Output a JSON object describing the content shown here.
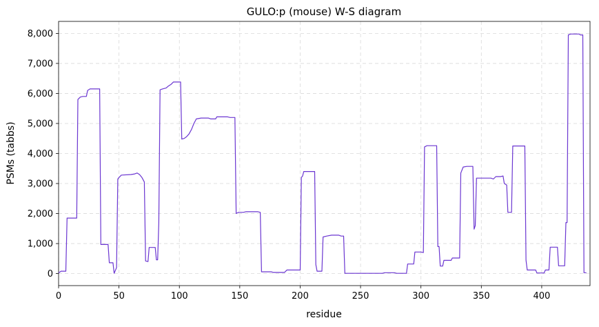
{
  "chart_data": {
    "type": "line",
    "title": "GULO:p (mouse) W-S diagram",
    "xlabel": "residue",
    "ylabel": "PSMs (tabbs)",
    "xlim": [
      0,
      440
    ],
    "ylim": [
      -400,
      8400
    ],
    "xticks": [
      0,
      50,
      100,
      150,
      200,
      250,
      300,
      350,
      400
    ],
    "xtick_labels": [
      "0",
      "50",
      "100",
      "150",
      "200",
      "250",
      "300",
      "350",
      "400"
    ],
    "yticks": [
      0,
      1000,
      2000,
      3000,
      4000,
      5000,
      6000,
      7000,
      8000
    ],
    "ytick_labels": [
      "0",
      "1,000",
      "2,000",
      "3,000",
      "4,000",
      "5,000",
      "6,000",
      "7,000",
      "8,000"
    ],
    "grid": true,
    "line_color": "#6a35d1",
    "series": [
      {
        "points": [
          [
            0,
            20
          ],
          [
            2,
            80
          ],
          [
            6,
            80
          ],
          [
            7,
            1850
          ],
          [
            15,
            1850
          ],
          [
            16,
            5800
          ],
          [
            18,
            5880
          ],
          [
            20,
            5900
          ],
          [
            23,
            5900
          ],
          [
            24,
            6100
          ],
          [
            26,
            6150
          ],
          [
            34,
            6150
          ],
          [
            35,
            970
          ],
          [
            41,
            970
          ],
          [
            42,
            360
          ],
          [
            45,
            360
          ],
          [
            46,
            10
          ],
          [
            48,
            200
          ],
          [
            49,
            3150
          ],
          [
            50,
            3200
          ],
          [
            52,
            3280
          ],
          [
            60,
            3300
          ],
          [
            63,
            3320
          ],
          [
            65,
            3350
          ],
          [
            67,
            3300
          ],
          [
            69,
            3200
          ],
          [
            71,
            3050
          ],
          [
            72,
            420
          ],
          [
            74,
            400
          ],
          [
            75,
            870
          ],
          [
            80,
            870
          ],
          [
            81,
            460
          ],
          [
            82,
            460
          ],
          [
            83,
            1700
          ],
          [
            84,
            6120
          ],
          [
            86,
            6150
          ],
          [
            89,
            6180
          ],
          [
            91,
            6250
          ],
          [
            93,
            6300
          ],
          [
            95,
            6380
          ],
          [
            101,
            6380
          ],
          [
            102,
            4480
          ],
          [
            104,
            4500
          ],
          [
            106,
            4560
          ],
          [
            108,
            4650
          ],
          [
            110,
            4800
          ],
          [
            112,
            5000
          ],
          [
            114,
            5150
          ],
          [
            118,
            5180
          ],
          [
            124,
            5180
          ],
          [
            126,
            5150
          ],
          [
            130,
            5150
          ],
          [
            131,
            5220
          ],
          [
            140,
            5220
          ],
          [
            142,
            5200
          ],
          [
            146,
            5200
          ],
          [
            147,
            2000
          ],
          [
            149,
            2040
          ],
          [
            153,
            2040
          ],
          [
            155,
            2060
          ],
          [
            165,
            2060
          ],
          [
            167,
            2040
          ],
          [
            168,
            60
          ],
          [
            176,
            60
          ],
          [
            178,
            40
          ],
          [
            187,
            40
          ],
          [
            189,
            120
          ],
          [
            200,
            120
          ],
          [
            201,
            3200
          ],
          [
            202,
            3250
          ],
          [
            203,
            3400
          ],
          [
            212,
            3400
          ],
          [
            213,
            300
          ],
          [
            214,
            80
          ],
          [
            218,
            80
          ],
          [
            219,
            1220
          ],
          [
            222,
            1250
          ],
          [
            226,
            1280
          ],
          [
            232,
            1280
          ],
          [
            234,
            1250
          ],
          [
            236,
            1250
          ],
          [
            237,
            10
          ],
          [
            268,
            10
          ],
          [
            270,
            30
          ],
          [
            278,
            30
          ],
          [
            280,
            10
          ],
          [
            288,
            10
          ],
          [
            289,
            320
          ],
          [
            294,
            320
          ],
          [
            295,
            720
          ],
          [
            300,
            720
          ],
          [
            302,
            700
          ],
          [
            303,
            4220
          ],
          [
            305,
            4260
          ],
          [
            313,
            4260
          ],
          [
            314,
            900
          ],
          [
            315,
            900
          ],
          [
            316,
            250
          ],
          [
            318,
            250
          ],
          [
            319,
            440
          ],
          [
            325,
            440
          ],
          [
            326,
            520
          ],
          [
            332,
            520
          ],
          [
            333,
            3350
          ],
          [
            335,
            3550
          ],
          [
            338,
            3570
          ],
          [
            343,
            3570
          ],
          [
            344,
            1480
          ],
          [
            345,
            1600
          ],
          [
            346,
            3180
          ],
          [
            358,
            3180
          ],
          [
            360,
            3150
          ],
          [
            362,
            3230
          ],
          [
            366,
            3230
          ],
          [
            368,
            3250
          ],
          [
            369,
            3000
          ],
          [
            371,
            2950
          ],
          [
            372,
            2040
          ],
          [
            375,
            2040
          ],
          [
            376,
            4250
          ],
          [
            386,
            4250
          ],
          [
            387,
            450
          ],
          [
            388,
            120
          ],
          [
            390,
            120
          ],
          [
            395,
            120
          ],
          [
            396,
            20
          ],
          [
            402,
            20
          ],
          [
            403,
            120
          ],
          [
            406,
            120
          ],
          [
            407,
            880
          ],
          [
            413,
            880
          ],
          [
            414,
            260
          ],
          [
            419,
            260
          ],
          [
            420,
            1700
          ],
          [
            421,
            1700
          ],
          [
            422,
            7950
          ],
          [
            424,
            7980
          ],
          [
            431,
            7980
          ],
          [
            432,
            7950
          ],
          [
            434,
            7950
          ],
          [
            435,
            30
          ],
          [
            437,
            30
          ]
        ]
      }
    ]
  }
}
